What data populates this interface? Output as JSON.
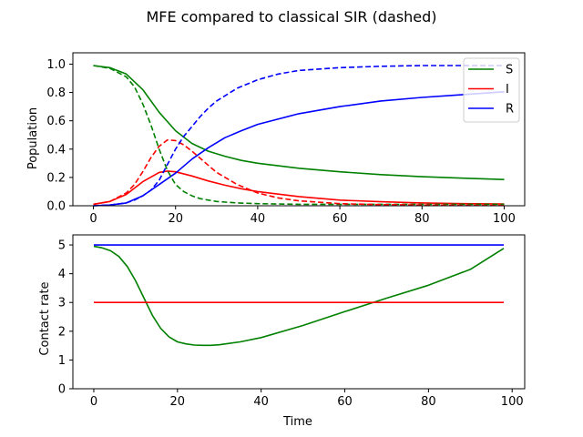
{
  "figure_title": "MFE compared to classical SIR (dashed)",
  "chart_data": [
    {
      "type": "line",
      "name": "population-chart",
      "ylabel": "Population",
      "xlabel": "",
      "xlim": [
        -5,
        105
      ],
      "ylim": [
        0,
        1.08
      ],
      "xticks": [
        0,
        20,
        40,
        60,
        80,
        100
      ],
      "yticks": [
        0.0,
        0.2,
        0.4,
        0.6,
        0.8,
        1.0
      ],
      "ytick_labels": [
        "0.0",
        "0.2",
        "0.4",
        "0.6",
        "0.8",
        "1.0"
      ],
      "legend": {
        "position": "top-right",
        "entries": [
          {
            "label": "S",
            "color": "#008000"
          },
          {
            "label": "I",
            "color": "#ff0000"
          },
          {
            "label": "R",
            "color": "#0000ff"
          }
        ]
      },
      "series": [
        {
          "name": "S",
          "style": "solid",
          "color": "#008000",
          "x": [
            0,
            4,
            8,
            12,
            16,
            20,
            24,
            28,
            32,
            36,
            40,
            50,
            60,
            70,
            80,
            90,
            100
          ],
          "y": [
            0.99,
            0.975,
            0.93,
            0.82,
            0.66,
            0.53,
            0.44,
            0.385,
            0.35,
            0.32,
            0.3,
            0.265,
            0.24,
            0.22,
            0.205,
            0.195,
            0.185
          ]
        },
        {
          "name": "I",
          "style": "solid",
          "color": "#ff0000",
          "x": [
            0,
            4,
            8,
            12,
            16,
            18,
            20,
            24,
            28,
            32,
            36,
            40,
            50,
            60,
            70,
            80,
            90,
            100
          ],
          "y": [
            0.01,
            0.03,
            0.08,
            0.17,
            0.235,
            0.245,
            0.24,
            0.21,
            0.175,
            0.145,
            0.12,
            0.1,
            0.065,
            0.04,
            0.028,
            0.02,
            0.015,
            0.012
          ]
        },
        {
          "name": "R",
          "style": "solid",
          "color": "#0000ff",
          "x": [
            0,
            4,
            8,
            12,
            16,
            20,
            24,
            28,
            32,
            36,
            40,
            50,
            60,
            70,
            80,
            90,
            100
          ],
          "y": [
            0.0,
            0.005,
            0.02,
            0.07,
            0.15,
            0.23,
            0.33,
            0.41,
            0.48,
            0.53,
            0.575,
            0.65,
            0.7,
            0.74,
            0.765,
            0.785,
            0.805
          ]
        },
        {
          "name": "S (classical)",
          "style": "dashed",
          "color": "#008000",
          "x": [
            0,
            4,
            8,
            10,
            12,
            14,
            16,
            18,
            20,
            22,
            24,
            26,
            28,
            30,
            35,
            40,
            50,
            60,
            70,
            80,
            90,
            100
          ],
          "y": [
            0.99,
            0.97,
            0.91,
            0.84,
            0.72,
            0.57,
            0.4,
            0.25,
            0.15,
            0.1,
            0.07,
            0.05,
            0.04,
            0.03,
            0.02,
            0.015,
            0.01,
            0.01,
            0.01,
            0.01,
            0.01,
            0.01
          ]
        },
        {
          "name": "I (classical)",
          "style": "dashed",
          "color": "#ff0000",
          "x": [
            0,
            4,
            8,
            10,
            12,
            14,
            16,
            18,
            20,
            22,
            24,
            26,
            28,
            30,
            35,
            40,
            45,
            50,
            60,
            70,
            80,
            90,
            100
          ],
          "y": [
            0.01,
            0.03,
            0.09,
            0.15,
            0.24,
            0.34,
            0.42,
            0.465,
            0.46,
            0.43,
            0.385,
            0.335,
            0.285,
            0.235,
            0.15,
            0.09,
            0.055,
            0.035,
            0.015,
            0.008,
            0.005,
            0.003,
            0.002
          ]
        },
        {
          "name": "R (classical)",
          "style": "dashed",
          "color": "#0000ff",
          "x": [
            0,
            4,
            8,
            10,
            12,
            14,
            16,
            18,
            20,
            22,
            24,
            26,
            28,
            30,
            35,
            40,
            45,
            50,
            60,
            70,
            80,
            90,
            100
          ],
          "y": [
            0.0,
            0.005,
            0.02,
            0.04,
            0.07,
            0.11,
            0.18,
            0.29,
            0.4,
            0.49,
            0.56,
            0.63,
            0.69,
            0.74,
            0.83,
            0.89,
            0.93,
            0.955,
            0.975,
            0.985,
            0.99,
            0.99,
            0.99
          ]
        }
      ]
    },
    {
      "type": "line",
      "name": "contact-rate-chart",
      "ylabel": "Contact rate",
      "xlabel": "Time",
      "xlim": [
        -5,
        103
      ],
      "ylim": [
        0,
        5.35
      ],
      "xticks": [
        0,
        20,
        40,
        60,
        80,
        100
      ],
      "yticks": [
        0,
        1,
        2,
        3,
        4,
        5
      ],
      "ytick_labels": [
        "0",
        "1",
        "2",
        "3",
        "4",
        "5"
      ],
      "series": [
        {
          "name": "S",
          "style": "solid",
          "color": "#008000",
          "x": [
            0,
            2,
            4,
            6,
            8,
            10,
            12,
            14,
            16,
            18,
            20,
            22,
            24,
            26,
            28,
            30,
            35,
            40,
            50,
            60,
            70,
            80,
            90,
            98
          ],
          "y": [
            4.95,
            4.9,
            4.8,
            4.6,
            4.25,
            3.75,
            3.15,
            2.55,
            2.1,
            1.8,
            1.63,
            1.56,
            1.52,
            1.51,
            1.51,
            1.53,
            1.63,
            1.78,
            2.2,
            2.68,
            3.15,
            3.6,
            4.15,
            4.88
          ]
        },
        {
          "name": "I",
          "style": "solid",
          "color": "#ff0000",
          "x": [
            0,
            98
          ],
          "y": [
            3.0,
            3.0
          ]
        },
        {
          "name": "R",
          "style": "solid",
          "color": "#0000ff",
          "x": [
            0,
            98
          ],
          "y": [
            5.0,
            5.0
          ]
        }
      ]
    }
  ]
}
